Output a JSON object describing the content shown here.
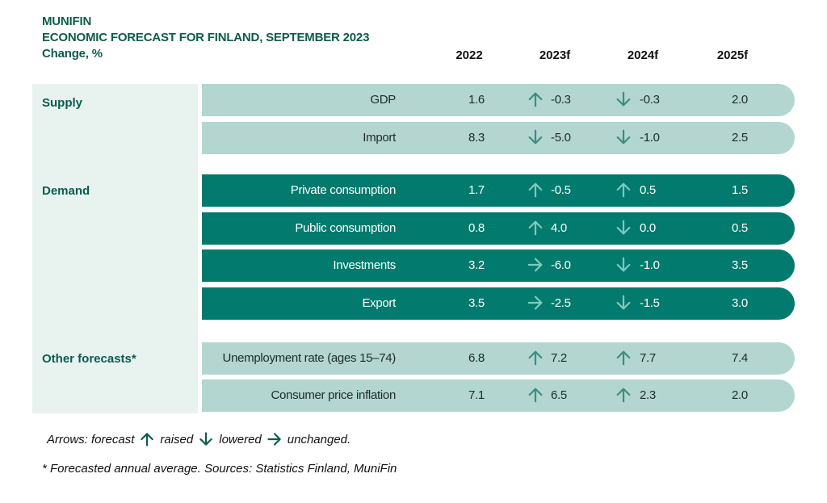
{
  "header": {
    "brand": "MUNIFIN",
    "title": "ECONOMIC FORECAST FOR FINLAND, SEPTEMBER 2023",
    "subtitle": "Change, %"
  },
  "columns": [
    "2022",
    "2023f",
    "2024f",
    "2025f"
  ],
  "sections": {
    "supply": "Supply",
    "demand": "Demand",
    "other": "Other forecasts*"
  },
  "colors": {
    "brand_green": "#0b5c4e",
    "light_row": "#b3d6d0",
    "dark_row": "#027a6d",
    "sidebar": "#e8f2ef",
    "arrow_light": "#3a8f80",
    "arrow_dark": "#7fc9bd"
  },
  "chart_data": {
    "type": "table",
    "title": "ECONOMIC FORECAST FOR FINLAND, SEPTEMBER 2023",
    "subtitle": "Change, %",
    "columns": [
      "2022",
      "2023f",
      "2024f",
      "2025f"
    ],
    "rows": [
      {
        "section": "Supply",
        "label": "GDP",
        "style": "light",
        "v2022": "1.6",
        "v2023": "-0.3",
        "a2023": "up",
        "v2024": "-0.3",
        "a2024": "down",
        "v2025": "2.0"
      },
      {
        "section": "Supply",
        "label": "Import",
        "style": "light",
        "v2022": "8.3",
        "v2023": "-5.0",
        "a2023": "down",
        "v2024": "-1.0",
        "a2024": "down",
        "v2025": "2.5"
      },
      {
        "section": "Demand",
        "label": "Private consumption",
        "style": "dark",
        "v2022": "1.7",
        "v2023": "-0.5",
        "a2023": "up",
        "v2024": "0.5",
        "a2024": "up",
        "v2025": "1.5"
      },
      {
        "section": "Demand",
        "label": "Public consumption",
        "style": "dark",
        "v2022": "0.8",
        "v2023": "4.0",
        "a2023": "up",
        "v2024": "0.0",
        "a2024": "down",
        "v2025": "0.5"
      },
      {
        "section": "Demand",
        "label": "Investments",
        "style": "dark",
        "v2022": "3.2",
        "v2023": "-6.0",
        "a2023": "right",
        "v2024": "-1.0",
        "a2024": "down",
        "v2025": "3.5"
      },
      {
        "section": "Demand",
        "label": "Export",
        "style": "dark",
        "v2022": "3.5",
        "v2023": "-2.5",
        "a2023": "right",
        "v2024": "-1.5",
        "a2024": "down",
        "v2025": "3.0"
      },
      {
        "section": "Other forecasts*",
        "label": "Unemployment rate (ages 15–74)",
        "style": "light",
        "v2022": "6.8",
        "v2023": "7.2",
        "a2023": "up",
        "v2024": "7.7",
        "a2024": "up",
        "v2025": "7.4"
      },
      {
        "section": "Other forecasts*",
        "label": "Consumer price inflation",
        "style": "light",
        "v2022": "7.1",
        "v2023": "6.5",
        "a2023": "up",
        "v2024": "2.3",
        "a2024": "up",
        "v2025": "2.0"
      }
    ]
  },
  "legend": {
    "prefix": "Arrows: forecast",
    "raised": "raised",
    "lowered": "lowered",
    "unchanged": "unchanged."
  },
  "footnote": "* Forecasted annual average. Sources: Statistics Finland, MuniFin"
}
